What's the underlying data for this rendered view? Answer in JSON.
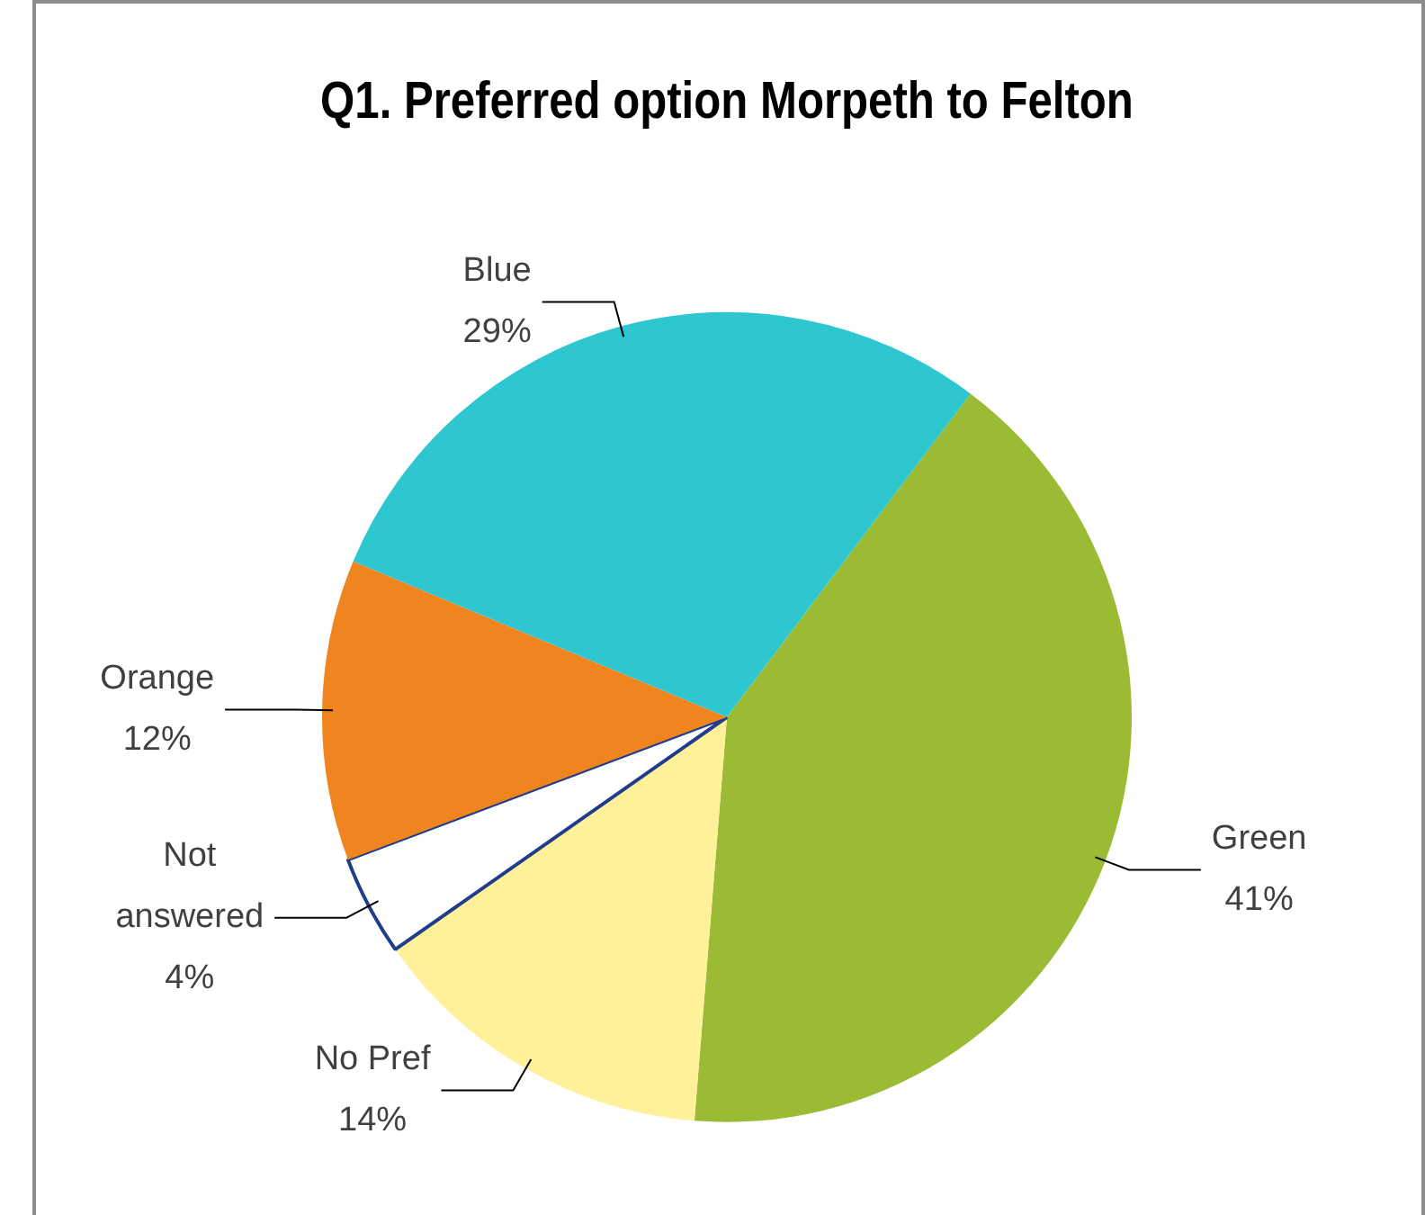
{
  "chart_data": {
    "type": "pie",
    "title": "Q1. Preferred option Morpeth to Felton",
    "categories": [
      "Green",
      "No Pref",
      "Not answered",
      "Orange",
      "Blue"
    ],
    "values": [
      41,
      14,
      4,
      12,
      29
    ],
    "colors": [
      "#9bbb34",
      "#fef19a",
      "#ffffff",
      "#f0841f",
      "#2ec7cf"
    ],
    "value_labels": [
      "41%",
      "14%",
      "4%",
      "12%",
      "29%"
    ]
  }
}
